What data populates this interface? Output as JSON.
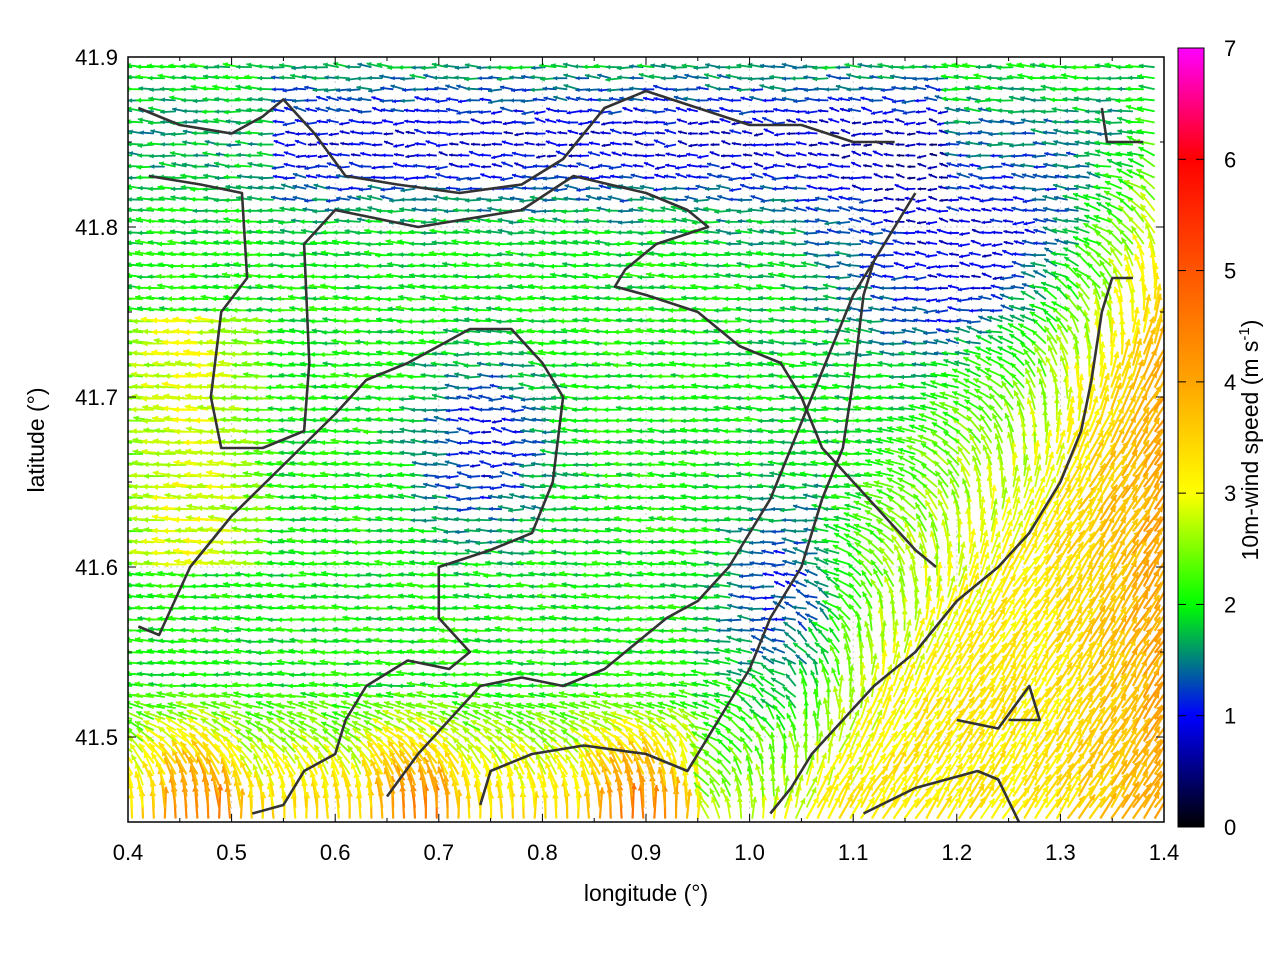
{
  "chart_data": {
    "type": "vector-field",
    "xlabel": "longitude (°)",
    "ylabel": "latitude (°)",
    "xlim": [
      0.4,
      1.4
    ],
    "ylim": [
      41.45,
      41.9
    ],
    "x_ticks": [
      "0.4",
      "0.5",
      "0.6",
      "0.7",
      "0.8",
      "0.9",
      "1.0",
      "1.1",
      "1.2",
      "1.3",
      "1.4"
    ],
    "y_ticks": [
      "41.5",
      "41.6",
      "41.7",
      "41.8",
      "41.9"
    ],
    "grid": true,
    "colorbar": {
      "label": "10m-wind speed (m s-1)",
      "label_text": "10m-wind speed (m s",
      "label_sup": "-1",
      "label_end": ")",
      "range": [
        0,
        7
      ],
      "ticks": [
        "0",
        "1",
        "2",
        "3",
        "4",
        "5",
        "6",
        "7"
      ],
      "colors": [
        "#000000",
        "#0000ff",
        "#00ff00",
        "#ffff00",
        "#ffa500",
        "#ff0000",
        "#ff00ff"
      ]
    },
    "coastlines": [
      [
        [
          0.41,
          41.87
        ],
        [
          0.45,
          41.86
        ],
        [
          0.5,
          41.855
        ],
        [
          0.53,
          41.865
        ],
        [
          0.55,
          41.875
        ],
        [
          0.58,
          41.855
        ],
        [
          0.61,
          41.83
        ],
        [
          0.66,
          41.825
        ],
        [
          0.72,
          41.82
        ],
        [
          0.78,
          41.825
        ],
        [
          0.82,
          41.84
        ],
        [
          0.86,
          41.87
        ],
        [
          0.9,
          41.88
        ],
        [
          0.95,
          41.87
        ],
        [
          1.0,
          41.86
        ],
        [
          1.05,
          41.86
        ],
        [
          1.1,
          41.85
        ],
        [
          1.14,
          41.85
        ]
      ],
      [
        [
          0.42,
          41.83
        ],
        [
          0.47,
          41.825
        ],
        [
          0.51,
          41.82
        ],
        [
          0.515,
          41.77
        ],
        [
          0.49,
          41.75
        ],
        [
          0.48,
          41.7
        ],
        [
          0.49,
          41.67
        ],
        [
          0.53,
          41.67
        ],
        [
          0.57,
          41.68
        ],
        [
          0.575,
          41.72
        ],
        [
          0.57,
          41.79
        ],
        [
          0.6,
          41.81
        ],
        [
          0.68,
          41.8
        ],
        [
          0.78,
          41.81
        ],
        [
          0.83,
          41.83
        ],
        [
          0.9,
          41.82
        ],
        [
          0.94,
          41.81
        ],
        [
          0.96,
          41.8
        ],
        [
          0.91,
          41.79
        ],
        [
          0.88,
          41.775
        ],
        [
          0.87,
          41.765
        ],
        [
          0.9,
          41.76
        ],
        [
          0.95,
          41.75
        ],
        [
          0.99,
          41.73
        ],
        [
          1.03,
          41.72
        ],
        [
          1.05,
          41.7
        ],
        [
          1.07,
          41.67
        ],
        [
          1.1,
          41.65
        ],
        [
          1.13,
          41.63
        ],
        [
          1.16,
          41.61
        ],
        [
          1.18,
          41.6
        ]
      ],
      [
        [
          0.41,
          41.565
        ],
        [
          0.43,
          41.56
        ],
        [
          0.46,
          41.6
        ],
        [
          0.5,
          41.63
        ],
        [
          0.55,
          41.66
        ],
        [
          0.6,
          41.69
        ],
        [
          0.63,
          41.71
        ],
        [
          0.67,
          41.72
        ],
        [
          0.7,
          41.73
        ],
        [
          0.73,
          41.74
        ],
        [
          0.77,
          41.74
        ],
        [
          0.8,
          41.72
        ],
        [
          0.82,
          41.7
        ],
        [
          0.81,
          41.65
        ],
        [
          0.79,
          41.62
        ],
        [
          0.75,
          41.61
        ],
        [
          0.7,
          41.6
        ],
        [
          0.7,
          41.57
        ],
        [
          0.73,
          41.55
        ],
        [
          0.71,
          41.54
        ],
        [
          0.67,
          41.545
        ],
        [
          0.63,
          41.53
        ],
        [
          0.61,
          41.51
        ],
        [
          0.6,
          41.49
        ],
        [
          0.57,
          41.48
        ],
        [
          0.55,
          41.46
        ],
        [
          0.52,
          41.455
        ]
      ],
      [
        [
          0.65,
          41.465
        ],
        [
          0.68,
          41.49
        ],
        [
          0.71,
          41.51
        ],
        [
          0.74,
          41.53
        ],
        [
          0.78,
          41.535
        ],
        [
          0.82,
          41.53
        ],
        [
          0.86,
          41.54
        ],
        [
          0.9,
          41.56
        ],
        [
          0.92,
          41.57
        ],
        [
          0.95,
          41.58
        ],
        [
          0.98,
          41.6
        ],
        [
          1.0,
          41.62
        ],
        [
          1.02,
          41.64
        ],
        [
          1.04,
          41.67
        ],
        [
          1.06,
          41.7
        ],
        [
          1.08,
          41.73
        ],
        [
          1.1,
          41.76
        ],
        [
          1.12,
          41.78
        ],
        [
          1.14,
          41.8
        ],
        [
          1.16,
          41.82
        ]
      ],
      [
        [
          0.74,
          41.46
        ],
        [
          0.75,
          41.48
        ],
        [
          0.79,
          41.49
        ],
        [
          0.84,
          41.495
        ],
        [
          0.9,
          41.49
        ],
        [
          0.94,
          41.48
        ],
        [
          0.96,
          41.5
        ],
        [
          0.98,
          41.52
        ],
        [
          1.0,
          41.54
        ],
        [
          1.02,
          41.57
        ],
        [
          1.05,
          41.6
        ],
        [
          1.07,
          41.64
        ],
        [
          1.09,
          41.67
        ],
        [
          1.1,
          41.71
        ],
        [
          1.11,
          41.76
        ],
        [
          1.12,
          41.78
        ]
      ],
      [
        [
          1.02,
          41.455
        ],
        [
          1.04,
          41.47
        ],
        [
          1.06,
          41.49
        ],
        [
          1.09,
          41.51
        ],
        [
          1.12,
          41.53
        ],
        [
          1.16,
          41.55
        ],
        [
          1.2,
          41.58
        ],
        [
          1.24,
          41.6
        ],
        [
          1.27,
          41.62
        ],
        [
          1.3,
          41.65
        ],
        [
          1.32,
          41.68
        ],
        [
          1.33,
          41.71
        ],
        [
          1.34,
          41.75
        ],
        [
          1.35,
          41.77
        ],
        [
          1.37,
          41.77
        ]
      ],
      [
        [
          1.11,
          41.455
        ],
        [
          1.16,
          41.47
        ],
        [
          1.22,
          41.48
        ],
        [
          1.24,
          41.475
        ],
        [
          1.26,
          41.45
        ]
      ],
      [
        [
          1.2,
          41.51
        ],
        [
          1.24,
          41.505
        ],
        [
          1.27,
          41.53
        ],
        [
          1.28,
          41.51
        ],
        [
          1.25,
          41.51
        ]
      ],
      [
        [
          1.34,
          41.87
        ],
        [
          1.345,
          41.85
        ],
        [
          1.36,
          41.85
        ],
        [
          1.38,
          41.85
        ]
      ]
    ],
    "wind_field": {
      "description": "quiver field of 10m wind vectors, colored by speed",
      "grid_spacing_deg": [
        0.014,
        0.01
      ],
      "dominant_direction": "westward over land, north/northeast in southeast coastal region",
      "speed_range_m_s": [
        0.2,
        5.5
      ]
    }
  }
}
